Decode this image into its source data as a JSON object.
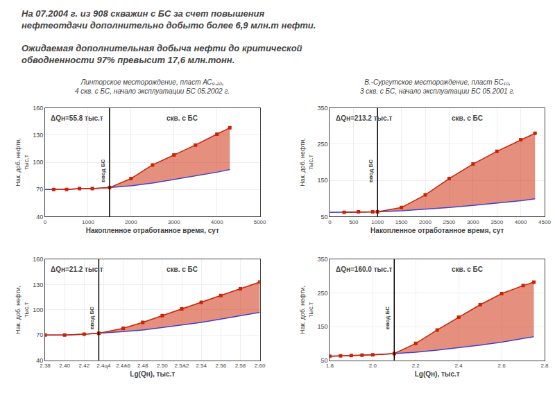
{
  "headlines": [
    [
      "На 07.2004 г. из 908 скважин с БС за счет повышения",
      "нефтеотдачи дополнительно добыто более 6,9 млн.т нефти."
    ],
    [
      "Ожидаемая дополнительная добыча нефти до критической",
      "обводненности 97% превысит 17,6 млн.тонн."
    ]
  ],
  "chart_data": [
    {
      "type": "line",
      "title": "Линторское месторождение, пласт АС₉₋₁₀,",
      "subtitle": "4 скв. с БС, начало эксплуатации БС 05.2002 г.",
      "xlabel": "Накопленное отработанное время, сут",
      "ylabel": "Нак. доб. нефти,\nтыс.т",
      "xlim": [
        0,
        5000
      ],
      "ylim": [
        40,
        160
      ],
      "xticks": [
        0,
        1000,
        2000,
        3000,
        4000,
        5000
      ],
      "yticks": [
        40,
        70,
        100,
        130,
        160
      ],
      "grid": true,
      "vline": {
        "x": 1500,
        "label": "ввод БС"
      },
      "annotations": [
        "ΔQн=55.8 тыс.т",
        "скв. с БС"
      ],
      "series": [
        {
          "x": [
            0,
            200,
            500,
            800,
            1100,
            1500,
            2000,
            2500,
            3000,
            3500,
            4000,
            4300
          ],
          "values": [
            70,
            70,
            70,
            71,
            71,
            72,
            74,
            77,
            81,
            85,
            89,
            92
          ],
          "color": "#4040CC"
        },
        {
          "x": [
            200,
            500,
            800,
            1100,
            1500,
            2000,
            2500,
            3000,
            3500,
            4000,
            4300
          ],
          "values": [
            70,
            70,
            71,
            71,
            72,
            82,
            97,
            108,
            119,
            131,
            138
          ],
          "color": "#CC2200",
          "marker": "square"
        }
      ]
    },
    {
      "type": "line",
      "title": "В.-Сургутское месторождение, пласт БС₁₀,",
      "subtitle": "3 скв. с БС, начало эксплуатации БС 05.2001 г.",
      "xlabel": "Накопленное отработанное время, сут",
      "ylabel": "Нак. доб. нефти,\nтыс.т",
      "xlim": [
        0,
        4500
      ],
      "ylim": [
        50,
        350
      ],
      "xticks": [
        0,
        500,
        1000,
        1500,
        2000,
        2500,
        3000,
        3500,
        4000,
        4500
      ],
      "yticks": [
        50,
        150,
        250,
        350
      ],
      "grid": true,
      "vline": {
        "x": 1000,
        "label": "ввод БС"
      },
      "annotations": [
        "ΔQн=213.2 тыс.т",
        "скв. с БС"
      ],
      "series": [
        {
          "x": [
            0,
            300,
            600,
            900,
            1000,
            1500,
            2000,
            2500,
            3000,
            3500,
            4000,
            4300
          ],
          "values": [
            62,
            62,
            63,
            63,
            63,
            66,
            70,
            75,
            81,
            87,
            94,
            99
          ],
          "color": "#4040CC"
        },
        {
          "x": [
            300,
            600,
            900,
            1000,
            1500,
            2000,
            2500,
            3000,
            3500,
            4000,
            4300
          ],
          "values": [
            62,
            63,
            63,
            63,
            75,
            110,
            155,
            195,
            230,
            262,
            280
          ],
          "color": "#CC2200",
          "marker": "square"
        }
      ]
    },
    {
      "type": "line",
      "xlabel": "Lg(Qн), тыс.т",
      "ylabel": "Нак. доб. нефти,\nтыс.т",
      "xlim": [
        2.38,
        2.6
      ],
      "ylim": [
        40,
        160
      ],
      "xticks": [
        2.38,
        {
          "value": 2.4,
          "label": "2.40"
        },
        2.42,
        {
          "value": 2.44,
          "label": "2.4ц4"
        },
        {
          "value": 2.46,
          "label": "2.4Ѧ6"
        },
        2.48,
        {
          "value": 2.5,
          "label": "2.50"
        },
        {
          "value": 2.52,
          "label": "2.5Ѧ2"
        },
        2.54,
        2.56,
        2.58,
        {
          "value": 2.6,
          "label": "2.60"
        }
      ],
      "yticks": [
        40,
        70,
        100,
        130,
        160
      ],
      "grid": true,
      "vline": {
        "x": 2.435,
        "label": "ввод БС"
      },
      "annotations": [
        "ΔQн=21.2 тыс.т",
        "скв. с БС"
      ],
      "series": [
        {
          "x": [
            2.38,
            2.4,
            2.42,
            2.435,
            2.46,
            2.48,
            2.5,
            2.52,
            2.54,
            2.56,
            2.58,
            2.6
          ],
          "values": [
            70,
            70,
            71,
            72,
            74,
            76,
            79,
            82,
            85,
            89,
            93,
            97
          ],
          "color": "#4040CC"
        },
        {
          "x": [
            2.38,
            2.4,
            2.42,
            2.435,
            2.46,
            2.48,
            2.5,
            2.52,
            2.54,
            2.56,
            2.58,
            2.6
          ],
          "values": [
            70,
            70,
            71,
            72,
            78,
            85,
            93,
            101,
            109,
            117,
            125,
            133
          ],
          "color": "#CC2200",
          "marker": "square"
        }
      ]
    },
    {
      "type": "line",
      "xlabel": "Lg(Qн), тыс.т",
      "ylabel": "Нак. доб. нефти,\nтыс.т",
      "xlim": [
        1.8,
        2.8
      ],
      "ylim": [
        50,
        350
      ],
      "xticks": [
        1.8,
        {
          "value": 2.0,
          "label": "2.0"
        },
        2.2,
        2.4,
        2.6,
        2.8
      ],
      "yticks": [
        50,
        150,
        250,
        350
      ],
      "grid": true,
      "vline": {
        "x": 2.1,
        "label": "ввод БС"
      },
      "annotations": [
        "ΔQн=160.0 тыс.т",
        "скв. с БС"
      ],
      "series": [
        {
          "x": [
            1.8,
            1.85,
            1.9,
            1.95,
            2.0,
            2.1,
            2.2,
            2.3,
            2.4,
            2.5,
            2.6,
            2.7,
            2.75
          ],
          "values": [
            62,
            63,
            64,
            65,
            66,
            70,
            74,
            80,
            87,
            95,
            104,
            114,
            120
          ],
          "color": "#4040CC"
        },
        {
          "x": [
            1.8,
            1.85,
            1.9,
            1.95,
            2.0,
            2.1,
            2.2,
            2.3,
            2.4,
            2.5,
            2.6,
            2.7,
            2.75
          ],
          "values": [
            62,
            63,
            64,
            65,
            66,
            70,
            100,
            140,
            178,
            215,
            248,
            272,
            282
          ],
          "color": "#CC2200",
          "marker": "square"
        }
      ]
    }
  ]
}
